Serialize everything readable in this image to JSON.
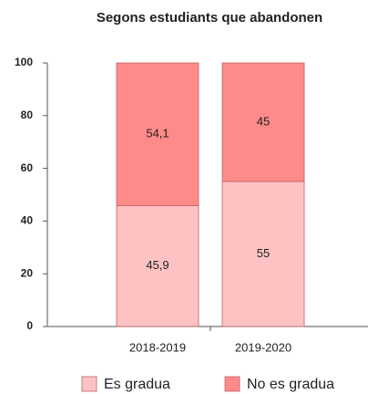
{
  "chart_data": {
    "type": "stacked_bar",
    "title": "Segons estudiants que abandonen",
    "categories": [
      "2018-2019",
      "2019-2020"
    ],
    "series": [
      {
        "name": "Es gradua",
        "color": "#ffc2c2",
        "values": [
          45.9,
          55
        ],
        "value_labels": [
          "45,9",
          "55"
        ]
      },
      {
        "name": "No es gradua",
        "color": "#ff8a8a",
        "values": [
          54.1,
          45
        ],
        "value_labels": [
          "54,1",
          "45"
        ]
      }
    ],
    "ylim": [
      0,
      100
    ],
    "yticks": [
      0,
      20,
      40,
      60,
      80,
      100
    ],
    "legend": "bottom"
  }
}
